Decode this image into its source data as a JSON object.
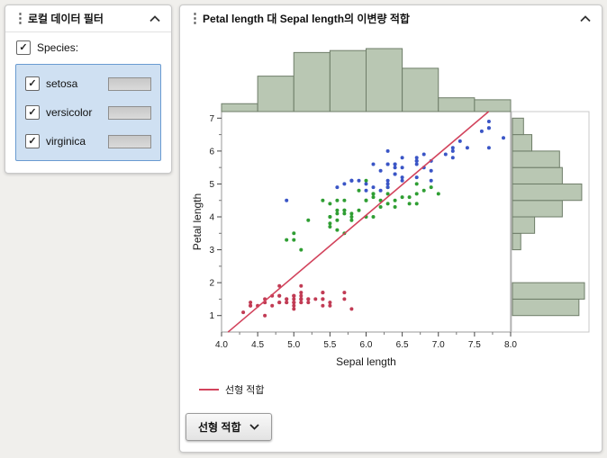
{
  "window": {
    "background": "#f0efec"
  },
  "icons": {
    "menu": "⋮",
    "check": "✓"
  },
  "filter_panel": {
    "title": "로컬 데이터 필터",
    "species_label": "Species:",
    "items": [
      {
        "label": "setosa",
        "checked": true
      },
      {
        "label": "versicolor",
        "checked": true
      },
      {
        "label": "virginica",
        "checked": true
      }
    ]
  },
  "report_panel": {
    "title": "Petal length 대 Sepal length의 이변량 적합",
    "fit_button_label": "선형 적합"
  },
  "chart_data": {
    "type": "scatter",
    "title": "Petal length 대 Sepal length의 이변량 적합",
    "xlabel": "Sepal length",
    "ylabel": "Petal length",
    "xlim": [
      4.0,
      8.0
    ],
    "ylim": [
      0.5,
      7.2
    ],
    "x_ticks": [
      "4.0",
      "4.5",
      "5.0",
      "5.5",
      "6.0",
      "6.5",
      "7.0",
      "7.5",
      "8.0"
    ],
    "y_ticks": [
      "1",
      "2",
      "3",
      "4",
      "5",
      "6",
      "7"
    ],
    "grid": false,
    "legend_position": "bottom-left",
    "histogram_fill": "#b9c7b3",
    "histogram_stroke": "#6e7d68",
    "series": [
      {
        "name": "setosa",
        "color": "#c13b54",
        "points": [
          [
            5.1,
            1.4
          ],
          [
            4.9,
            1.4
          ],
          [
            4.7,
            1.3
          ],
          [
            4.6,
            1.5
          ],
          [
            5.0,
            1.4
          ],
          [
            5.4,
            1.7
          ],
          [
            4.6,
            1.4
          ],
          [
            5.0,
            1.5
          ],
          [
            4.4,
            1.4
          ],
          [
            4.9,
            1.5
          ],
          [
            5.4,
            1.5
          ],
          [
            4.8,
            1.6
          ],
          [
            4.8,
            1.4
          ],
          [
            4.3,
            1.1
          ],
          [
            5.8,
            1.2
          ],
          [
            5.7,
            1.5
          ],
          [
            5.4,
            1.3
          ],
          [
            5.1,
            1.4
          ],
          [
            5.7,
            1.7
          ],
          [
            5.1,
            1.5
          ],
          [
            5.4,
            1.7
          ],
          [
            5.1,
            1.5
          ],
          [
            4.6,
            1.0
          ],
          [
            5.1,
            1.7
          ],
          [
            4.8,
            1.9
          ],
          [
            5.0,
            1.6
          ],
          [
            5.0,
            1.6
          ],
          [
            5.2,
            1.5
          ],
          [
            5.2,
            1.4
          ],
          [
            4.7,
            1.6
          ],
          [
            4.8,
            1.6
          ],
          [
            5.4,
            1.5
          ],
          [
            5.2,
            1.5
          ],
          [
            5.5,
            1.4
          ],
          [
            4.9,
            1.5
          ],
          [
            5.0,
            1.2
          ],
          [
            5.5,
            1.3
          ],
          [
            4.9,
            1.4
          ],
          [
            4.4,
            1.3
          ],
          [
            5.1,
            1.5
          ],
          [
            5.0,
            1.3
          ],
          [
            4.5,
            1.3
          ],
          [
            4.4,
            1.3
          ],
          [
            5.0,
            1.6
          ],
          [
            5.1,
            1.9
          ],
          [
            4.8,
            1.4
          ],
          [
            5.1,
            1.6
          ],
          [
            4.6,
            1.4
          ],
          [
            5.3,
            1.5
          ],
          [
            5.0,
            1.4
          ]
        ]
      },
      {
        "name": "versicolor",
        "color": "#2f9e33",
        "points": [
          [
            7.0,
            4.7
          ],
          [
            6.4,
            4.5
          ],
          [
            6.9,
            4.9
          ],
          [
            5.5,
            4.0
          ],
          [
            6.5,
            4.6
          ],
          [
            5.7,
            4.5
          ],
          [
            6.3,
            4.7
          ],
          [
            4.9,
            3.3
          ],
          [
            6.6,
            4.6
          ],
          [
            5.2,
            3.9
          ],
          [
            5.0,
            3.5
          ],
          [
            5.9,
            4.2
          ],
          [
            6.0,
            4.0
          ],
          [
            6.1,
            4.7
          ],
          [
            5.6,
            3.6
          ],
          [
            6.7,
            4.4
          ],
          [
            5.6,
            4.5
          ],
          [
            5.8,
            4.1
          ],
          [
            6.2,
            4.5
          ],
          [
            5.6,
            3.9
          ],
          [
            5.9,
            4.8
          ],
          [
            6.1,
            4.0
          ],
          [
            6.3,
            4.9
          ],
          [
            6.1,
            4.7
          ],
          [
            6.4,
            4.3
          ],
          [
            6.6,
            4.4
          ],
          [
            6.8,
            4.8
          ],
          [
            6.7,
            5.0
          ],
          [
            6.0,
            4.5
          ],
          [
            5.7,
            3.5
          ],
          [
            5.5,
            3.8
          ],
          [
            5.5,
            3.7
          ],
          [
            5.8,
            3.9
          ],
          [
            6.0,
            5.1
          ],
          [
            5.4,
            4.5
          ],
          [
            6.0,
            4.5
          ],
          [
            6.7,
            4.7
          ],
          [
            6.3,
            4.4
          ],
          [
            5.6,
            4.1
          ],
          [
            5.5,
            4.0
          ],
          [
            5.5,
            4.4
          ],
          [
            6.1,
            4.6
          ],
          [
            5.8,
            4.0
          ],
          [
            5.0,
            3.3
          ],
          [
            5.6,
            4.2
          ],
          [
            5.7,
            4.2
          ],
          [
            5.7,
            4.2
          ],
          [
            6.2,
            4.3
          ],
          [
            5.1,
            3.0
          ],
          [
            5.7,
            4.1
          ]
        ]
      },
      {
        "name": "virginica",
        "color": "#3a55c6",
        "points": [
          [
            6.3,
            6.0
          ],
          [
            5.8,
            5.1
          ],
          [
            7.1,
            5.9
          ],
          [
            6.3,
            5.6
          ],
          [
            6.5,
            5.8
          ],
          [
            7.6,
            6.6
          ],
          [
            4.9,
            4.5
          ],
          [
            7.3,
            6.3
          ],
          [
            6.7,
            5.8
          ],
          [
            7.2,
            6.1
          ],
          [
            6.5,
            5.1
          ],
          [
            6.4,
            5.3
          ],
          [
            6.8,
            5.5
          ],
          [
            5.7,
            5.0
          ],
          [
            5.8,
            5.1
          ],
          [
            6.4,
            5.3
          ],
          [
            6.5,
            5.5
          ],
          [
            7.7,
            6.7
          ],
          [
            7.7,
            6.9
          ],
          [
            6.0,
            5.0
          ],
          [
            6.9,
            5.7
          ],
          [
            5.6,
            4.9
          ],
          [
            7.7,
            6.7
          ],
          [
            6.3,
            4.9
          ],
          [
            6.7,
            5.7
          ],
          [
            7.2,
            6.0
          ],
          [
            6.2,
            4.8
          ],
          [
            6.1,
            4.9
          ],
          [
            6.4,
            5.6
          ],
          [
            7.2,
            5.8
          ],
          [
            7.4,
            6.1
          ],
          [
            7.9,
            6.4
          ],
          [
            6.4,
            5.6
          ],
          [
            6.3,
            5.1
          ],
          [
            6.1,
            5.6
          ],
          [
            7.7,
            6.1
          ],
          [
            6.3,
            5.6
          ],
          [
            6.4,
            5.5
          ],
          [
            6.0,
            4.8
          ],
          [
            6.9,
            5.4
          ],
          [
            6.7,
            5.6
          ],
          [
            6.9,
            5.1
          ],
          [
            5.8,
            5.1
          ],
          [
            6.8,
            5.9
          ],
          [
            6.7,
            5.7
          ],
          [
            6.7,
            5.2
          ],
          [
            6.3,
            5.0
          ],
          [
            6.5,
            5.2
          ],
          [
            6.2,
            5.4
          ],
          [
            5.9,
            5.1
          ]
        ]
      }
    ],
    "fit_line": {
      "label": "선형 적합",
      "color": "#d2435c",
      "slope": 1.8584,
      "intercept": -7.1014
    },
    "top_histogram": {
      "variable": "Sepal length",
      "bin_start": 4.0,
      "bin_width": 0.5,
      "counts": [
        4,
        18,
        30,
        31,
        32,
        22,
        7,
        6
      ]
    },
    "right_histogram": {
      "variable": "Petal length",
      "bin_start": 1.0,
      "bin_width": 0.5,
      "counts": [
        24,
        26,
        0,
        0,
        3,
        8,
        18,
        25,
        18,
        17,
        7,
        4
      ]
    }
  }
}
